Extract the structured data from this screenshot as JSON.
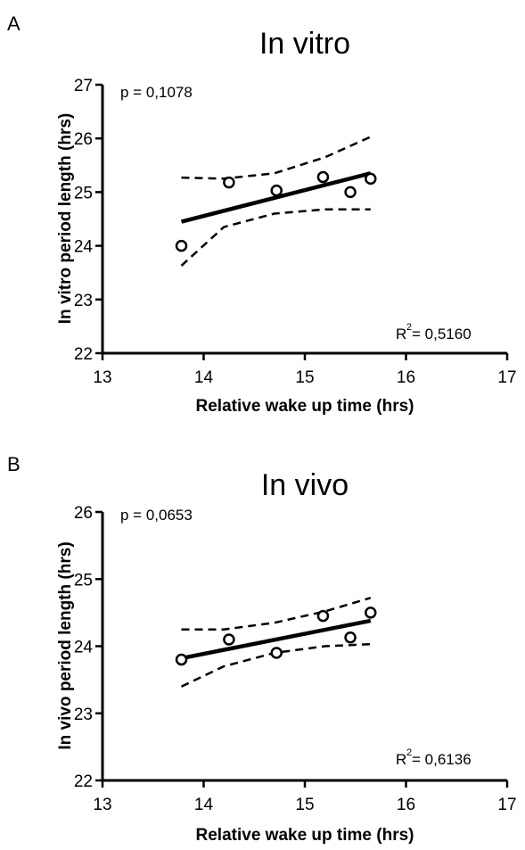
{
  "chart_data": [
    {
      "type": "scatter",
      "panel_label": "A",
      "title": "In vitro",
      "xlabel": "Relative wake up time (hrs)",
      "ylabel": "In vitro period length (hrs)",
      "xlim": [
        13,
        17
      ],
      "ylim": [
        22,
        27
      ],
      "xticks": [
        "13",
        "14",
        "15",
        "16",
        "17"
      ],
      "yticks": [
        "22",
        "23",
        "24",
        "25",
        "26",
        "27"
      ],
      "grid": false,
      "p_text": "p = 0,1078",
      "r2_prefix": "R",
      "r2_exp": "2",
      "r2_value": " = 0,5160",
      "points": [
        {
          "x": 13.78,
          "y": 24.0
        },
        {
          "x": 14.25,
          "y": 25.18
        },
        {
          "x": 14.72,
          "y": 25.03
        },
        {
          "x": 15.18,
          "y": 25.28
        },
        {
          "x": 15.45,
          "y": 25.0
        },
        {
          "x": 15.65,
          "y": 25.25
        }
      ],
      "fit_line": {
        "x": [
          13.78,
          15.65
        ],
        "y": [
          24.45,
          25.35
        ]
      },
      "ci_upper": {
        "x": [
          13.78,
          14.2,
          14.7,
          15.2,
          15.65
        ],
        "y": [
          25.27,
          25.25,
          25.35,
          25.65,
          26.03
        ]
      },
      "ci_lower": {
        "x": [
          13.78,
          14.2,
          14.7,
          15.2,
          15.65
        ],
        "y": [
          23.63,
          24.35,
          24.6,
          24.68,
          24.68
        ]
      }
    },
    {
      "type": "scatter",
      "panel_label": "B",
      "title": "In vivo",
      "xlabel": "Relative wake up time (hrs)",
      "ylabel": "In vivo period length (hrs)",
      "xlim": [
        13,
        17
      ],
      "ylim": [
        22,
        26
      ],
      "xticks": [
        "13",
        "14",
        "15",
        "16",
        "17"
      ],
      "yticks": [
        "22",
        "23",
        "24",
        "25",
        "26"
      ],
      "grid": false,
      "p_text": "p = 0,0653",
      "r2_prefix": "R",
      "r2_exp": "2",
      "r2_value": " = 0,6136",
      "points": [
        {
          "x": 13.78,
          "y": 23.8
        },
        {
          "x": 14.25,
          "y": 24.1
        },
        {
          "x": 14.72,
          "y": 23.9
        },
        {
          "x": 15.18,
          "y": 24.45
        },
        {
          "x": 15.45,
          "y": 24.13
        },
        {
          "x": 15.65,
          "y": 24.5
        }
      ],
      "fit_line": {
        "x": [
          13.78,
          15.65
        ],
        "y": [
          23.82,
          24.38
        ]
      },
      "ci_upper": {
        "x": [
          13.78,
          14.2,
          14.7,
          15.2,
          15.65
        ],
        "y": [
          24.25,
          24.25,
          24.35,
          24.52,
          24.72
        ]
      },
      "ci_lower": {
        "x": [
          13.78,
          14.2,
          14.7,
          15.2,
          15.65
        ],
        "y": [
          23.4,
          23.7,
          23.9,
          24.0,
          24.03
        ]
      }
    }
  ]
}
